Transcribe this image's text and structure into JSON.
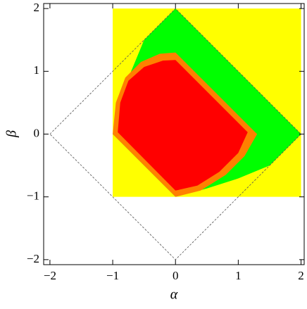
{
  "chart_data": {
    "type": "region",
    "xlabel": "α",
    "ylabel": "β",
    "xlim": [
      -2.1,
      2.05
    ],
    "ylim": [
      -2.08,
      2.08
    ],
    "xticks": [
      {
        "value": -2,
        "label": "−2"
      },
      {
        "value": -1,
        "label": "−1"
      },
      0,
      1,
      2
    ],
    "yticks": [
      {
        "value": -2,
        "label": "−2"
      },
      {
        "value": -1,
        "label": "−1"
      },
      0,
      1,
      2
    ],
    "series": [
      {
        "color": "#ffff00",
        "x": [
          -1,
          2,
          2,
          -1
        ],
        "y": [
          -1,
          -1,
          2,
          2
        ]
      },
      {
        "color": "#00ff00",
        "x": [
          -1,
          -0.866,
          -0.707,
          -0.5,
          0,
          2,
          1.5,
          1,
          0.5,
          0
        ],
        "y": [
          0,
          0.5,
          1,
          1.5,
          2,
          0,
          -0.5,
          -0.707,
          -0.866,
          -1
        ]
      },
      {
        "color": "#ff8000",
        "x": [
          -1,
          -0.95,
          -0.8,
          -0.55,
          -0.25,
          0,
          1.3,
          1.1,
          0.8,
          0.4,
          0
        ],
        "y": [
          0,
          0.5,
          0.9,
          1.15,
          1.28,
          1.3,
          0,
          -0.35,
          -0.65,
          -0.9,
          -1
        ]
      },
      {
        "color": "#ff0000",
        "x": [
          -0.92,
          -0.88,
          -0.75,
          -0.5,
          -0.2,
          0,
          1.15,
          1.0,
          0.7,
          0.35,
          0
        ],
        "y": [
          0.03,
          0.5,
          0.85,
          1.07,
          1.17,
          1.18,
          0.03,
          -0.3,
          -0.6,
          -0.82,
          -0.9
        ]
      },
      {
        "color": "#555555",
        "style": "dashed",
        "x": [
          -2,
          0,
          2,
          0,
          -2
        ],
        "y": [
          0,
          2,
          0,
          -2,
          0
        ]
      }
    ]
  }
}
